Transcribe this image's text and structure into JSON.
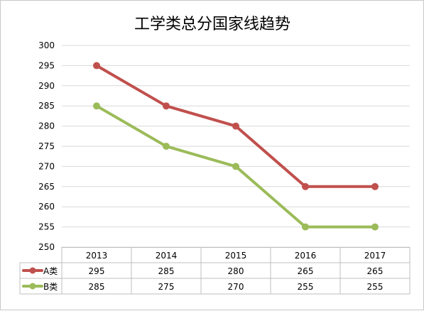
{
  "chart_data": {
    "type": "line",
    "title": "工学类总分国家线趋势",
    "categories": [
      "2013",
      "2014",
      "2015",
      "2016",
      "2017"
    ],
    "series": [
      {
        "name": "A类",
        "values": [
          295,
          285,
          280,
          265,
          265
        ],
        "color": "#c0504d"
      },
      {
        "name": "B类",
        "values": [
          285,
          275,
          270,
          255,
          255
        ],
        "color": "#9bbb59"
      }
    ],
    "ylim": [
      250,
      300
    ],
    "yticks": [
      250,
      255,
      260,
      265,
      270,
      275,
      280,
      285,
      290,
      295,
      300
    ],
    "grid": true,
    "legend": "data-table",
    "colors": {
      "grid": "#d9d9d9",
      "table_border": "#bfbfbf"
    }
  }
}
